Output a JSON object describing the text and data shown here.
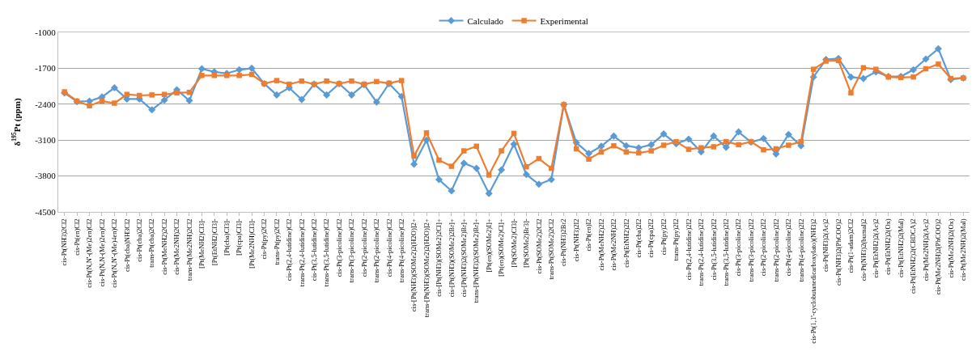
{
  "chart_data": {
    "type": "line",
    "ylabel": "δ$^{195}$Pt (ppm)",
    "categories": [
      "cis-Pt(NH3)2Cl2",
      "cis-Pt(en)Cl2",
      "cis-Pt(N,N'-(Me)2en)Cl2",
      "cis-Pt(N,N-(Me)2en)Cl2",
      "cis-Pt(N,N'-(Me)4en)Cl2",
      "cis-Pt(cba)NH3Cl2",
      "cis-Pt(cba)2Cl2",
      "trans-Pt(cba)2Cl2",
      "cis-Pt(MeNH2)2Cl2",
      "cis-Pt(Me2NH)2Cl2",
      "trans-Pt(Me2NH)2Cl2",
      "[Pt(MeNH2)Cl3]-",
      "[Pt(EtNH2)Cl3]-",
      "[Pt(cba)Cl3]-",
      "[Pt(cpa)Cl3]-",
      "[Pt(Me2NH)Cl3]-",
      "cis-Pt(py)2Cl2",
      "trans-Pt(py)2Cl2",
      "cis-Pt(2,4-lutidine)Cl2",
      "trans-Pt(2,4-lutidine)Cl2",
      "cis-Pt(3,5-lutidine)Cl2",
      "trans-Pt(3,5-lutidine)Cl2",
      "cis-Pt(3-picoline)Cl2",
      "trans-Pt(3-picoline)Cl2",
      "cis-Pt(2-picoline)Cl2",
      "trans-Pt(2-picoline)Cl2",
      "cis-Pt(4-picoline)Cl2",
      "trans-Pt(4-picoline)Cl2",
      "cis-[Pt(NH3)(SOMe2)2(H2O)]2+",
      "trans-[Pt(NH3)(SOMe2)2(H2O)]2+",
      "cis-[Pt(NH3)(SOMe2)2Cl]+",
      "cis-[Pt(NH3)(SOMe2)2Br]+",
      "cis-[Pt(NH3)2(SOMe2)Br]+",
      "trans-[Pt(NH3)2(SOMe2)Br]+",
      "[Pt(en)(SOMe2)I]+",
      "[Pt(en)(SOMe2)Cl]+",
      "[Pt(SOMe2)Cl3]-",
      "[Pt(SOMe2)Br3]-",
      "cis-Pt(SOMe2)2Cl2",
      "trans-Pt(SOMe2)2Cl2",
      "cis-Pt(NH3)2Br2",
      "cis-Pt(NH3)2I2",
      "cis-Pt(en)I2",
      "cis-Pt(MeNH2)2I2",
      "cis-Pt(Me2NH)2I2",
      "cis-Pt(EtNH2)2I2",
      "cis-Pt(cba)2I2",
      "cis-Pt(cpa)2I2",
      "cis-Pt(py)2I2",
      "trans-Pt(py)2I2",
      "cis-Pt(2,4-lutidine)2I2",
      "trans-Pt(2,4-lutidine)2I2",
      "cis-Pt(3,5-lutidine)2I2",
      "trans-Pt(3,5-lutidine)2I2",
      "cis-Pt(3-picoline)2I2",
      "trans-Pt(3-picoline)2I2",
      "cis-Pt(2-picoline)2I2",
      "trans-Pt(2-picoline)2I2",
      "cis-Pt(4-picoline)2I2",
      "trans-Pt(4-picoline)2I2",
      "cis-Pt(1,1'-cyclobutanedicarboxylato)(NH3)2",
      "cis-Pt(NH3)2(Ac)2",
      "cis-Pt(NH3)2(PhCOO)2",
      "cis-Pt(1-adam)2Cl2",
      "cis-Pt(NH3)2(bumal)2",
      "cis-Pt(EtNH2)2(Ac)2",
      "cis-Pt(EtNH2)2(Ox)",
      "cis-Pt(EtNH2)2(Mal)",
      "cis-Pt(EtNH2)2(CBDCA)2",
      "cis-Pt(Me2NH)2(Ac)2",
      "cis-Pt(Me2NH)2(PhCOO)2",
      "cis-Pt(Me2NH)2(Ox)",
      "cis-Pt(Me2NH)2(Mal)"
    ],
    "series": [
      {
        "name": "Calculado",
        "color": "#5b9bd5",
        "marker": "diamond",
        "values": [
          -2180,
          -2350,
          -2340,
          -2260,
          -2080,
          -2300,
          -2300,
          -2510,
          -2320,
          -2120,
          -2330,
          -1710,
          -1770,
          -1800,
          -1730,
          -1700,
          -2000,
          -2220,
          -2080,
          -2310,
          -2010,
          -2220,
          -2000,
          -2220,
          -2020,
          -2360,
          -2000,
          -2250,
          -3570,
          -3100,
          -3870,
          -4090,
          -3550,
          -3650,
          -4140,
          -3680,
          -3180,
          -3770,
          -3960,
          -3870,
          -2410,
          -3150,
          -3360,
          -3220,
          -3020,
          -3210,
          -3250,
          -3190,
          -2980,
          -3170,
          -3080,
          -3330,
          -3020,
          -3240,
          -2940,
          -3140,
          -3070,
          -3370,
          -2990,
          -3210,
          -1870,
          -1530,
          -1510,
          -1870,
          -1900,
          -1770,
          -1860,
          -1860,
          -1730,
          -1520,
          -1320,
          -1920,
          -1890
        ]
      },
      {
        "name": "Experimental",
        "color": "#ed7d31",
        "marker": "square",
        "values": [
          -2160,
          -2340,
          -2430,
          -2340,
          -2380,
          -2210,
          -2230,
          -2220,
          -2210,
          -2180,
          -2170,
          -1840,
          -1840,
          -1840,
          -1840,
          -1820,
          -2000,
          -1940,
          -2010,
          -1950,
          -2010,
          -1950,
          -2000,
          -1950,
          -2010,
          -1960,
          -1990,
          -1940,
          -3410,
          -2960,
          -3490,
          -3610,
          -3310,
          -3220,
          -3780,
          -3310,
          -2970,
          -3620,
          -3460,
          -3650,
          -2410,
          -3270,
          -3470,
          -3330,
          -3210,
          -3330,
          -3350,
          -3310,
          -3200,
          -3130,
          -3280,
          -3250,
          -3230,
          -3130,
          -3190,
          -3130,
          -3290,
          -3270,
          -3200,
          -3130,
          -1720,
          -1560,
          -1550,
          -2180,
          -1690,
          -1720,
          -1870,
          -1880,
          -1870,
          -1710,
          -1620,
          -1900,
          -1890
        ]
      }
    ],
    "ylim": [
      -4500,
      -1000
    ],
    "yticks": [
      -1000,
      -1700,
      -2400,
      -3100,
      -3800,
      -4500
    ],
    "grid": "y",
    "legend": "top",
    "line_style": "solid"
  }
}
